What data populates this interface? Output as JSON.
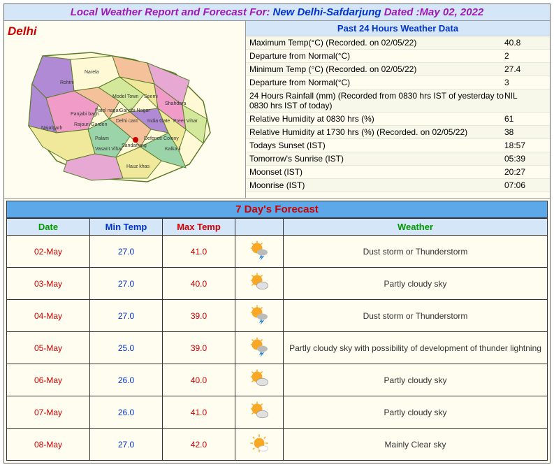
{
  "header": {
    "label": "Local Weather Report and Forecast For: ",
    "location": "New Delhi-Safdarjung",
    "date_label": "    Dated :May 02, 2022"
  },
  "map": {
    "title": "Delhi"
  },
  "past_data": {
    "title": "Past 24 Hours Weather Data",
    "rows": [
      {
        "label": "Maximum Temp(°C) (Recorded. on 02/05/22)",
        "value": "40.8"
      },
      {
        "label": "Departure from Normal(°C)",
        "value": "2"
      },
      {
        "label": "Minimum Temp (°C) (Recorded. on 02/05/22)",
        "value": "27.4"
      },
      {
        "label": "Departure from Normal(°C)",
        "value": "3"
      },
      {
        "label": "24 Hours Rainfall (mm) (Recorded from 0830 hrs IST of yesterday to 0830 hrs IST of today)",
        "value": "NIL"
      },
      {
        "label": "Relative Humidity at 0830 hrs (%)",
        "value": "61"
      },
      {
        "label": "Relative Humidity at 1730 hrs (%) (Recorded. on 02/05/22)",
        "value": "38"
      },
      {
        "label": "Todays Sunset (IST)",
        "value": "18:57"
      },
      {
        "label": "Tomorrow's Sunrise (IST)",
        "value": "05:39"
      },
      {
        "label": "Moonset (IST)",
        "value": "20:27"
      },
      {
        "label": "Moonrise (IST)",
        "value": "07:06"
      }
    ]
  },
  "forecast": {
    "title": "7 Day's Forecast",
    "headers": {
      "date": "Date",
      "min": "Min Temp",
      "max": "Max Temp",
      "icon": "",
      "weather": "Weather"
    },
    "rows": [
      {
        "date": "02-May",
        "min": "27.0",
        "max": "41.0",
        "icon": "storm",
        "weather": "Dust storm or Thunderstorm"
      },
      {
        "date": "03-May",
        "min": "27.0",
        "max": "40.0",
        "icon": "partly",
        "weather": "Partly cloudy sky"
      },
      {
        "date": "04-May",
        "min": "27.0",
        "max": "39.0",
        "icon": "storm",
        "weather": "Dust storm or Thunderstorm"
      },
      {
        "date": "05-May",
        "min": "25.0",
        "max": "39.0",
        "icon": "storm",
        "weather": "Partly cloudy sky with possibility of development of thunder lightning"
      },
      {
        "date": "06-May",
        "min": "26.0",
        "max": "40.0",
        "icon": "partly",
        "weather": "Partly cloudy sky"
      },
      {
        "date": "07-May",
        "min": "26.0",
        "max": "41.0",
        "icon": "partly",
        "weather": "Partly cloudy sky"
      },
      {
        "date": "08-May",
        "min": "27.0",
        "max": "42.0",
        "icon": "clear",
        "weather": "Mainly Clear sky"
      }
    ]
  },
  "styling": {
    "header_bg": "#d4e6f7",
    "header_label_color": "#9d1ab5",
    "header_location_color": "#0033cc",
    "body_bg": "#fefdf0",
    "forecast_title_bg": "#5da8e8",
    "forecast_title_color": "#cc0000",
    "date_color": "#cc0000",
    "min_color": "#0033cc",
    "max_color": "#cc0000",
    "weather_header_color": "#009900",
    "border_color": "#333"
  }
}
